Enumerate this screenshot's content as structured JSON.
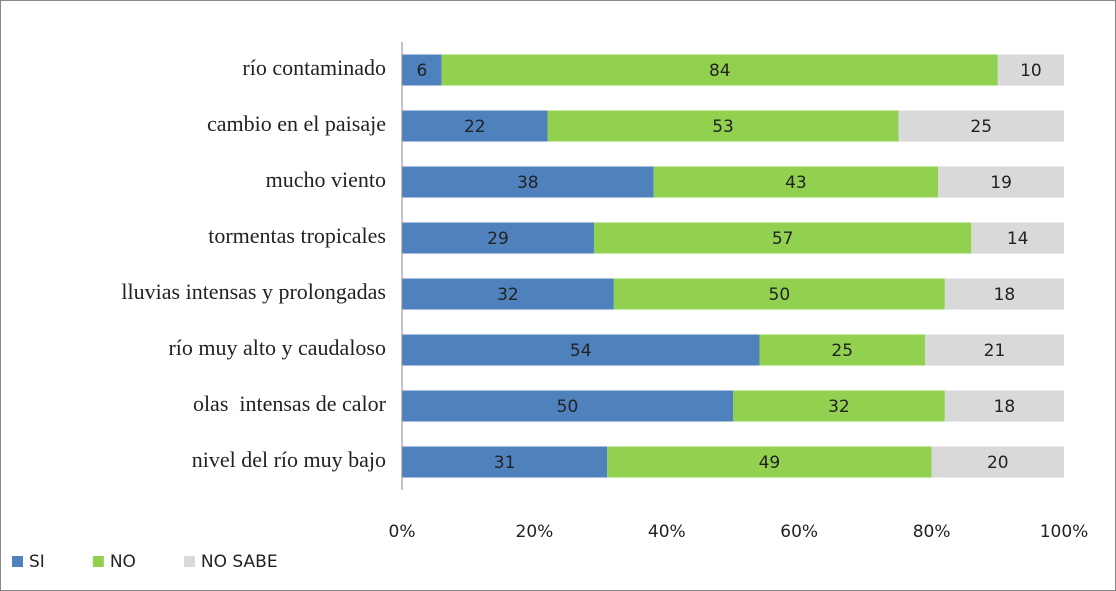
{
  "chart_data": {
    "type": "stacked-barh",
    "categories": [
      "río contaminado",
      "cambio en el paisaje",
      "mucho viento",
      "tormentas tropicales",
      "lluvias intensas y prolongadas",
      "río muy alto y caudaloso",
      "olas  intensas de calor",
      "nivel del río muy bajo"
    ],
    "series": [
      {
        "name": "SI",
        "color": "#4f81bd",
        "values": [
          6,
          22,
          38,
          29,
          32,
          54,
          50,
          31
        ]
      },
      {
        "name": "NO",
        "color": "#92d050",
        "values": [
          84,
          53,
          43,
          57,
          50,
          25,
          32,
          49
        ]
      },
      {
        "name": "NO SABE",
        "color": "#d9d9d9",
        "values": [
          10,
          25,
          19,
          14,
          18,
          21,
          18,
          20
        ]
      }
    ],
    "xlim": [
      0,
      100
    ],
    "xticks": [
      {
        "value": 0,
        "label": "0%"
      },
      {
        "value": 20,
        "label": "20%"
      },
      {
        "value": 40,
        "label": "40%"
      },
      {
        "value": 60,
        "label": "60%"
      },
      {
        "value": 80,
        "label": "80%"
      },
      {
        "value": 100,
        "label": "100%"
      }
    ],
    "legend": "bottom-left"
  }
}
